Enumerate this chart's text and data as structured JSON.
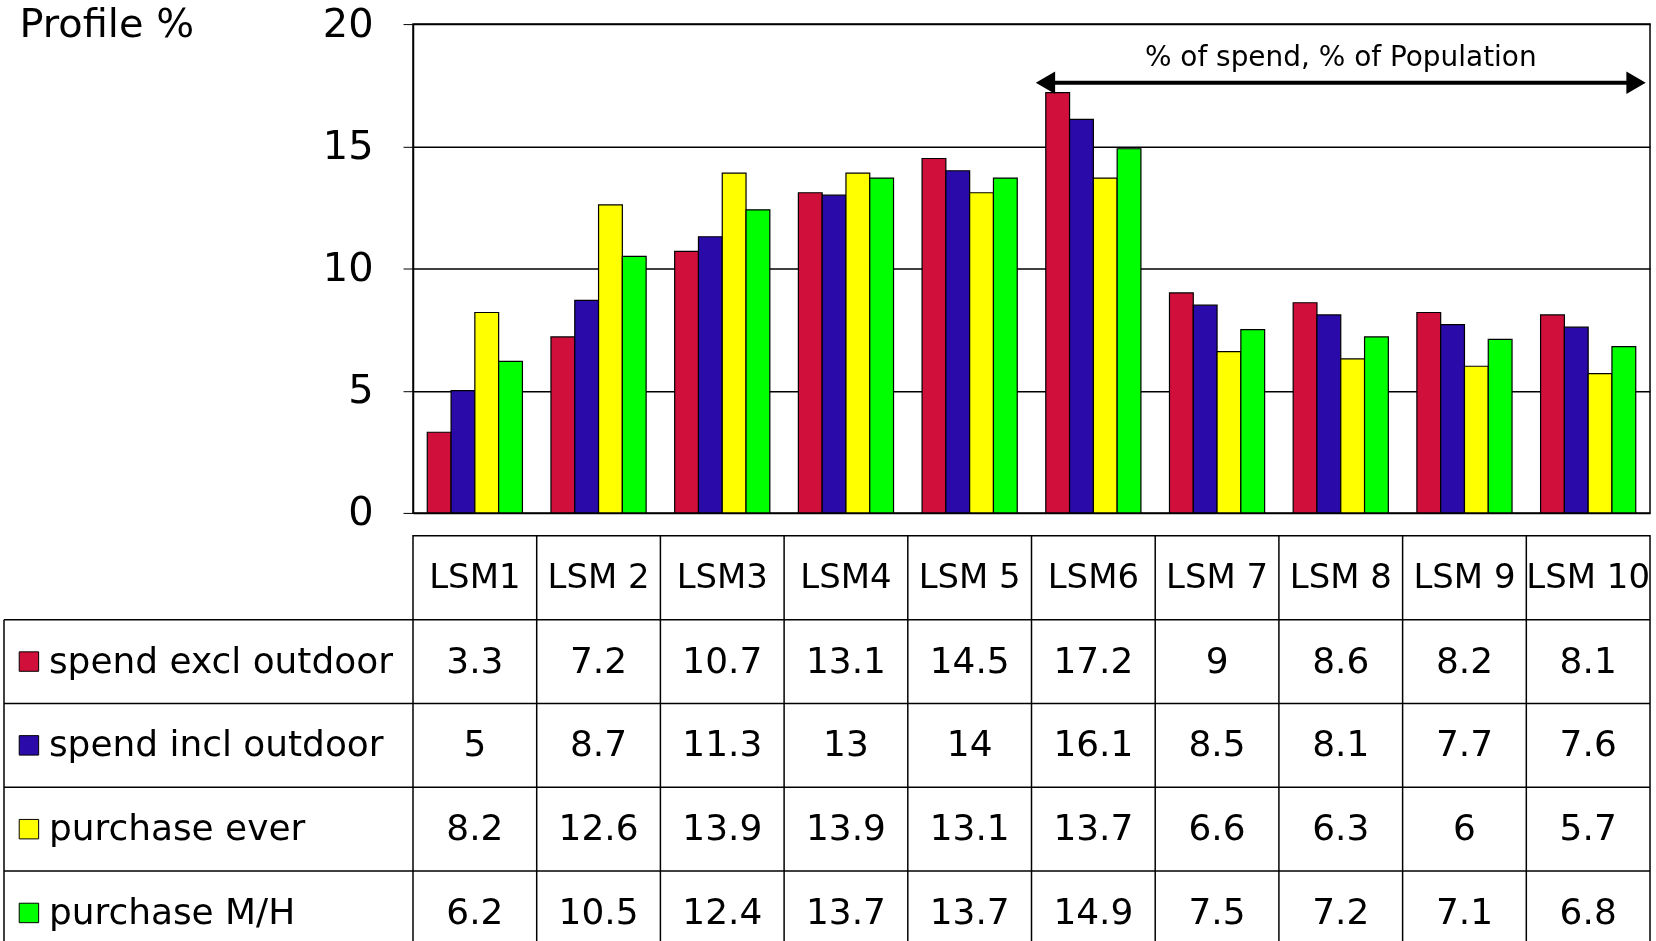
{
  "chart_data": {
    "type": "bar",
    "ylabel": "Profile %",
    "categories": [
      "LSM1",
      "LSM 2",
      "LSM3",
      "LSM4",
      "LSM 5",
      "LSM6",
      "LSM 7",
      "LSM 8",
      "LSM 9",
      "LSM 10"
    ],
    "series": [
      {
        "name": "spend excl outdoor",
        "color": "#d0103a",
        "values": [
          3.3,
          7.2,
          10.7,
          13.1,
          14.5,
          17.2,
          9,
          8.6,
          8.2,
          8.1
        ]
      },
      {
        "name": "spend incl outdoor",
        "color": "#2a0aa8",
        "values": [
          5,
          8.7,
          11.3,
          13,
          14,
          16.1,
          8.5,
          8.1,
          7.7,
          7.6
        ]
      },
      {
        "name": "purchase ever",
        "color": "#ffff00",
        "values": [
          8.2,
          12.6,
          13.9,
          13.9,
          13.1,
          13.7,
          6.6,
          6.3,
          6,
          5.7
        ]
      },
      {
        "name": "purchase M/H",
        "color": "#00ff00",
        "values": [
          6.2,
          10.5,
          12.4,
          13.7,
          13.7,
          14.9,
          7.5,
          7.2,
          7.1,
          6.8
        ]
      }
    ],
    "ylim": [
      0,
      20
    ],
    "yticks": [
      0,
      5,
      10,
      15,
      20
    ],
    "grid": "y",
    "legend": "bottom left",
    "data_labels": true,
    "annotations": [
      "% of spend, % of Population"
    ]
  }
}
